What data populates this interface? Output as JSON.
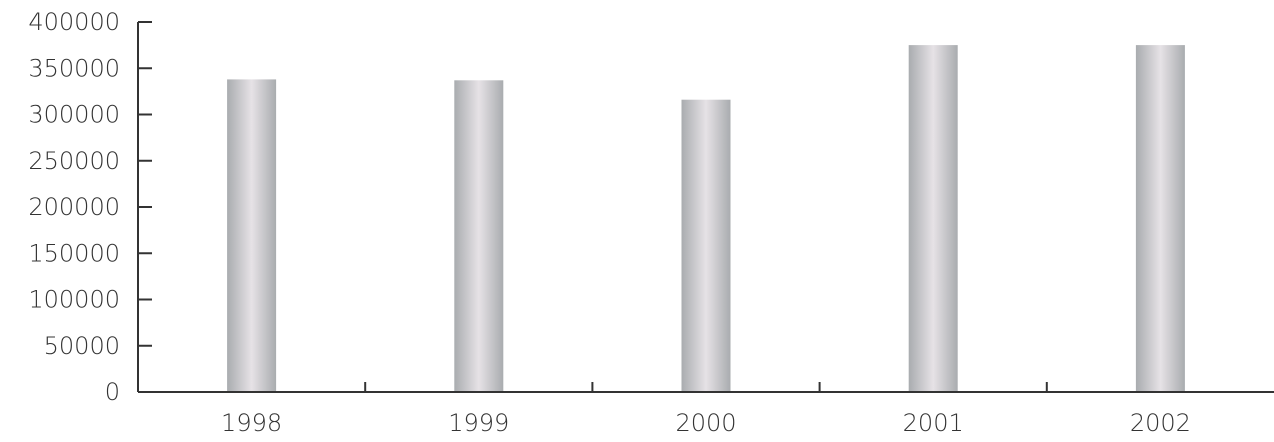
{
  "chart_data": {
    "type": "bar",
    "categories": [
      "1998",
      "1999",
      "2000",
      "2001",
      "2002"
    ],
    "values": [
      338000,
      337000,
      316000,
      375000,
      375000
    ],
    "y_ticks": [
      0,
      50000,
      100000,
      150000,
      200000,
      250000,
      300000,
      350000,
      400000
    ],
    "y_tick_labels": [
      "0",
      "50000",
      "100000",
      "150000",
      "200000",
      "250000",
      "300000",
      "350000",
      "400000"
    ],
    "ylim": [
      0,
      400000
    ],
    "title": "",
    "xlabel": "",
    "ylabel": "",
    "grid": false,
    "legend": "none",
    "colors": {
      "bar_edge": "#a9acaf",
      "bar_highlight": "#e6e2e6",
      "axis": "#333333",
      "text": "#333333"
    }
  }
}
